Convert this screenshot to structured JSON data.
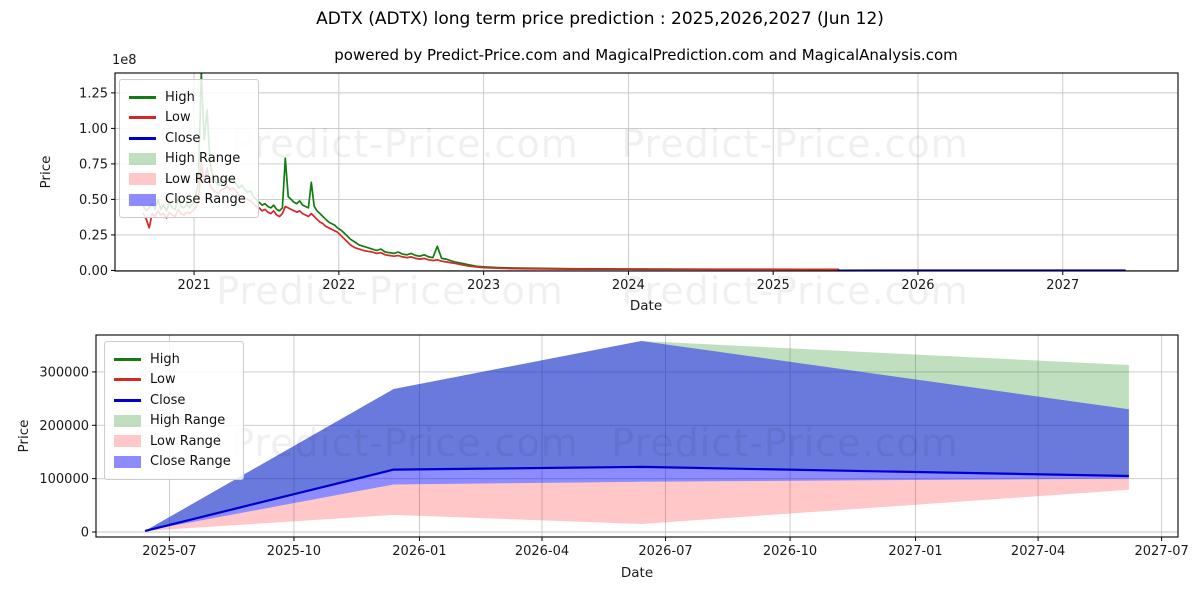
{
  "title": "ADTX (ADTX) long term price prediction : 2025,2026,2027 (Jun 12)",
  "subtitle": "powered by Predict-Price.com and MagicalPrediction.com and MagicalAnalysis.com",
  "watermark": "Predict-Price.com",
  "colors": {
    "high": "#117c11",
    "low": "#d62728",
    "close": "#0000cd",
    "high_range": "rgba(0,128,0,0.25)",
    "low_range": "rgba(255,0,0,0.22)",
    "close_range": "rgba(0,0,255,0.45)",
    "grid": "#c6c6c6",
    "axis": "#000000",
    "tick_text": "#1a1a1a"
  },
  "legend": [
    {
      "label": "High",
      "swatch": "line",
      "color_key": "high"
    },
    {
      "label": "Low",
      "swatch": "line",
      "color_key": "low"
    },
    {
      "label": "Close",
      "swatch": "line",
      "color_key": "close"
    },
    {
      "label": "High Range",
      "swatch": "patch",
      "color_key": "high_range"
    },
    {
      "label": "Low Range",
      "swatch": "patch",
      "color_key": "low_range"
    },
    {
      "label": "Close Range",
      "swatch": "patch",
      "color_key": "close_range"
    }
  ],
  "chart_data": [
    {
      "type": "line",
      "name": "historical-price-with-long-term-prediction",
      "xlabel": "Date",
      "ylabel": "Price",
      "y_offset_label": "1e8",
      "x_ticks": {
        "labels": [
          "2021",
          "2022",
          "2023",
          "2024",
          "2025",
          "2026",
          "2027"
        ],
        "values": [
          2021,
          2022,
          2023,
          2024,
          2025,
          2026,
          2027
        ]
      },
      "y_ticks": {
        "labels": [
          "0.00",
          "0.25",
          "0.50",
          "0.75",
          "1.00",
          "1.25"
        ],
        "values": [
          0,
          25000000,
          50000000,
          75000000,
          100000000,
          125000000
        ]
      },
      "ylim": [
        -400000,
        139000000
      ],
      "xlim": [
        2020.454,
        2027.796
      ],
      "series": [
        {
          "name": "High",
          "color_key": "high",
          "scale": 1000000,
          "width": 1.7,
          "x": [
            2020.65,
            2020.67,
            2020.69,
            2020.71,
            2020.73,
            2020.75,
            2020.77,
            2020.79,
            2020.81,
            2020.83,
            2020.85,
            2020.87,
            2020.89,
            2020.91,
            2020.93,
            2020.95,
            2020.97,
            2020.99,
            2021.01,
            2021.03,
            2021.05,
            2021.07,
            2021.09,
            2021.11,
            2021.13,
            2021.15,
            2021.17,
            2021.19,
            2021.21,
            2021.23,
            2021.25,
            2021.27,
            2021.29,
            2021.31,
            2021.33,
            2021.35,
            2021.37,
            2021.39,
            2021.41,
            2021.43,
            2021.45,
            2021.47,
            2021.49,
            2021.51,
            2021.53,
            2021.55,
            2021.57,
            2021.59,
            2021.61,
            2021.63,
            2021.65,
            2021.67,
            2021.69,
            2021.71,
            2021.73,
            2021.75,
            2021.77,
            2021.79,
            2021.81,
            2021.83,
            2021.85,
            2021.87,
            2021.89,
            2021.91,
            2021.93,
            2021.95,
            2021.97,
            2021.99,
            2022.02,
            2022.05,
            2022.08,
            2022.11,
            2022.14,
            2022.17,
            2022.2,
            2022.23,
            2022.26,
            2022.29,
            2022.32,
            2022.35,
            2022.38,
            2022.41,
            2022.44,
            2022.47,
            2022.5,
            2022.53,
            2022.56,
            2022.59,
            2022.62,
            2022.65,
            2022.68,
            2022.71,
            2022.74,
            2022.77,
            2022.8,
            2022.85,
            2022.9,
            2022.95,
            2023.0,
            2023.1,
            2023.2,
            2023.4,
            2023.6,
            2023.8,
            2024.0,
            2024.3,
            2024.6,
            2024.9,
            2025.2,
            2025.45
          ],
          "values": [
            45,
            42,
            44,
            47,
            43,
            50,
            43,
            46,
            42,
            48,
            44,
            43,
            52,
            45,
            44,
            47,
            44,
            47,
            52,
            62,
            139,
            92,
            113,
            76,
            66,
            62,
            60,
            64,
            63,
            65,
            62,
            64,
            61,
            58,
            60,
            57,
            55,
            56,
            52,
            50,
            48,
            46,
            47,
            45,
            44,
            46,
            43,
            42,
            44,
            79,
            52,
            50,
            48,
            47,
            49,
            46,
            45,
            44,
            62,
            45,
            42,
            40,
            38,
            36,
            34,
            33,
            32,
            30,
            28,
            25,
            22,
            20,
            18,
            17,
            16,
            15,
            14,
            15,
            13,
            12.5,
            12,
            13,
            11.5,
            11,
            12,
            10.5,
            10,
            11,
            9.5,
            9,
            17,
            8.5,
            8,
            7,
            6,
            5,
            4,
            3,
            2.5,
            2,
            1.7,
            1.4,
            1.2,
            1.1,
            1,
            0.95,
            0.9,
            0.85,
            0.8,
            0.75
          ]
        },
        {
          "name": "Low",
          "color_key": "low",
          "scale": 1000000,
          "width": 1.7,
          "x": [
            2020.65,
            2020.67,
            2020.69,
            2020.71,
            2020.73,
            2020.75,
            2020.77,
            2020.79,
            2020.81,
            2020.83,
            2020.85,
            2020.87,
            2020.89,
            2020.91,
            2020.93,
            2020.95,
            2020.97,
            2020.99,
            2021.01,
            2021.03,
            2021.05,
            2021.07,
            2021.09,
            2021.11,
            2021.13,
            2021.15,
            2021.17,
            2021.19,
            2021.21,
            2021.23,
            2021.25,
            2021.27,
            2021.29,
            2021.31,
            2021.33,
            2021.35,
            2021.37,
            2021.39,
            2021.41,
            2021.43,
            2021.45,
            2021.47,
            2021.49,
            2021.51,
            2021.53,
            2021.55,
            2021.57,
            2021.59,
            2021.61,
            2021.63,
            2021.65,
            2021.67,
            2021.69,
            2021.71,
            2021.73,
            2021.75,
            2021.77,
            2021.79,
            2021.81,
            2021.83,
            2021.85,
            2021.87,
            2021.89,
            2021.91,
            2021.93,
            2021.95,
            2021.97,
            2021.99,
            2022.02,
            2022.05,
            2022.08,
            2022.11,
            2022.14,
            2022.17,
            2022.2,
            2022.23,
            2022.26,
            2022.29,
            2022.32,
            2022.35,
            2022.38,
            2022.41,
            2022.44,
            2022.47,
            2022.5,
            2022.53,
            2022.56,
            2022.59,
            2022.62,
            2022.65,
            2022.68,
            2022.71,
            2022.74,
            2022.77,
            2022.8,
            2022.85,
            2022.9,
            2022.95,
            2023.0,
            2023.1,
            2023.2,
            2023.4,
            2023.6,
            2023.8,
            2024.0,
            2024.3,
            2024.6,
            2024.9,
            2025.2,
            2025.45
          ],
          "values": [
            40,
            36,
            30,
            40,
            38,
            42,
            39,
            40,
            37,
            41,
            39,
            38,
            43,
            40,
            39,
            41,
            40,
            42,
            44,
            48,
            76,
            62,
            72,
            60,
            57,
            55,
            54,
            57,
            58,
            59,
            57,
            58,
            56,
            53,
            52,
            51,
            50,
            49,
            47,
            45,
            44,
            42,
            43,
            41,
            40,
            42,
            39,
            38,
            40,
            45,
            44,
            43,
            42,
            41,
            42,
            40,
            39,
            38,
            40,
            38,
            36,
            34,
            33,
            31,
            30,
            29,
            28,
            27,
            24,
            21,
            18,
            16,
            15,
            14,
            13.5,
            13,
            12,
            12.5,
            11,
            10.5,
            10,
            10.5,
            9.5,
            9,
            9.5,
            8.5,
            8,
            8.5,
            7.5,
            7,
            7.5,
            6.5,
            6,
            5.5,
            5,
            4,
            3,
            2.5,
            2,
            1.6,
            1.3,
            1.1,
            0.95,
            0.9,
            0.85,
            0.8,
            0.75,
            0.7,
            0.65,
            0.6
          ]
        },
        {
          "name": "Close",
          "color_key": "close",
          "scale": 1,
          "width": 1.8,
          "x": [
            2025.45,
            2025.948,
            2026.447,
            2027.43
          ],
          "values": [
            2000,
            117000,
            122000,
            105000
          ]
        }
      ]
    },
    {
      "type": "area",
      "name": "price-prediction-ranges-2025-2027",
      "xlabel": "Date",
      "ylabel": "Price",
      "x_ticks": {
        "labels": [
          "2025-07",
          "2025-10",
          "2026-01",
          "2026-04",
          "2026-07",
          "2026-10",
          "2027-01",
          "2027-04",
          "2027-07"
        ],
        "values": [
          2025.496,
          2025.747,
          2026.0,
          2026.247,
          2026.496,
          2026.747,
          2027.0,
          2027.247,
          2027.496
        ]
      },
      "y_ticks": {
        "labels": [
          "0",
          "100000",
          "200000",
          "300000"
        ],
        "values": [
          0,
          100000,
          200000,
          300000
        ]
      },
      "ylim": [
        -9372,
        369228
      ],
      "xlim": [
        2025.348,
        2027.529
      ],
      "keypoint_dates": [
        "2025-06-12",
        "2025-12-12",
        "2026-06-12",
        "2027-06-12"
      ],
      "x": [
        2025.447,
        2025.948,
        2026.447,
        2027.43
      ],
      "series": {
        "close": [
          2000,
          117000,
          122000,
          105000
        ],
        "close_range_upper": [
          2000,
          268000,
          358000,
          230000
        ],
        "close_range_lower": [
          2000,
          89000,
          94000,
          100000
        ],
        "high_range_upper": [
          2000,
          268000,
          358000,
          313000
        ],
        "high_range_lower": [
          2000,
          117000,
          122000,
          105000
        ],
        "low_range_upper": [
          2000,
          89000,
          94000,
          100000
        ],
        "low_range_lower": [
          2000,
          32000,
          15000,
          79000
        ]
      }
    }
  ]
}
